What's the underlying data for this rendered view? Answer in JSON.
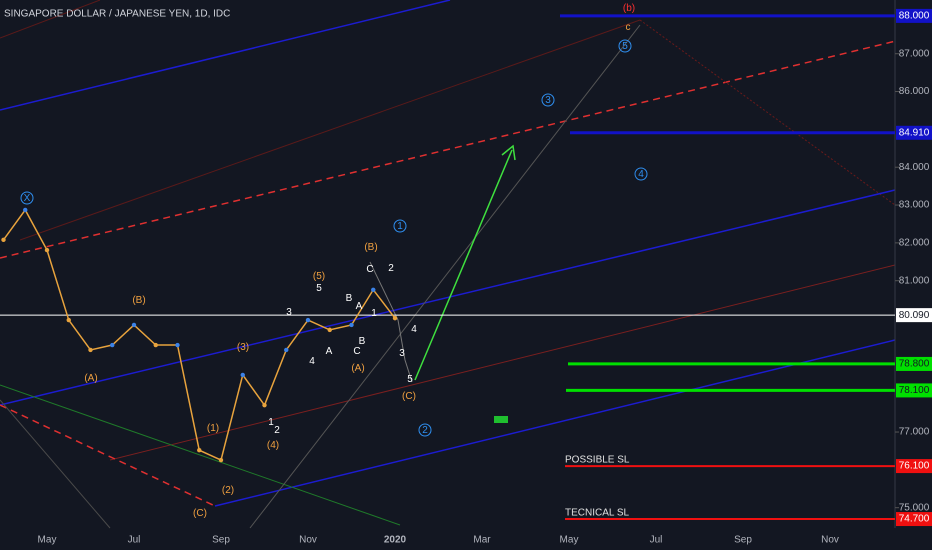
{
  "chart_data": {
    "type": "line",
    "title": "SINGAPORE DOLLAR / JAPANESE YEN, 1D, IDC",
    "categories": [
      null,
      null,
      "May",
      null,
      null,
      null,
      "Jul",
      null,
      null,
      null,
      "Sep",
      null,
      null,
      null,
      "Nov",
      null,
      null,
      null,
      "2020",
      null,
      null,
      null,
      "Mar",
      null,
      null,
      null,
      "May",
      null,
      null,
      null,
      "Jul",
      null,
      null,
      null,
      "Sep",
      null,
      null,
      null,
      "Nov",
      null,
      null
    ],
    "series": [
      {
        "color": "#e8a33d",
        "up_color": "#3b82e8",
        "values": [
          82.08,
          82.87,
          81.81,
          79.96,
          79.17,
          79.3,
          79.83,
          79.3,
          79.3,
          76.52,
          76.26,
          78.51,
          77.71,
          79.17,
          79.96,
          79.7,
          79.83,
          80.76,
          80.01,
          null,
          null,
          null,
          null,
          null,
          null,
          null,
          null,
          null,
          null,
          null,
          null,
          null,
          null,
          null,
          null,
          null,
          null,
          null,
          null,
          null,
          null
        ]
      }
    ],
    "ylim": [
      74.45,
      88.42
    ],
    "yticks": [
      {
        "value": 87,
        "label": "87.000"
      },
      {
        "value": 86,
        "label": "86.000"
      },
      {
        "value": 84,
        "label": "84.000"
      },
      {
        "value": 83,
        "label": "83.000"
      },
      {
        "value": 82,
        "label": "82.000"
      },
      {
        "value": 81,
        "label": "81.000"
      },
      {
        "value": 77,
        "label": "77.000"
      },
      {
        "value": 75,
        "label": "75.000"
      }
    ],
    "levels": [
      {
        "value": 88,
        "label": "88.000",
        "color": "#1212c8",
        "text_color": "#ffffff"
      },
      {
        "value": 84.91,
        "label": "84.910",
        "color": "#1212c8",
        "text_color": "#ffffff"
      },
      {
        "value": 80.09,
        "label": "80.090",
        "color": "#ffffff",
        "text_color": "#131722"
      },
      {
        "value": 78.8,
        "label": "78.800",
        "color": "#00e000",
        "text_color": "#131722"
      },
      {
        "value": 78.1,
        "label": "78.100",
        "color": "#00e000",
        "text_color": "#131722"
      },
      {
        "value": 76.1,
        "label": "76.100",
        "color": "#f01010",
        "text_color": "#ffffff",
        "note": "POSSIBLE SL"
      },
      {
        "value": 74.7,
        "label": "74.700",
        "color": "#f01010",
        "text_color": "#ffffff",
        "note": "TECNICAL SL"
      }
    ],
    "annotations": [
      "X",
      "(B)",
      "(A)",
      "(1)",
      "(2)",
      "(C)",
      "(3)",
      "(4)",
      "(5)",
      "(A)",
      "(B)",
      "(C)",
      "1",
      "2",
      "3",
      "4",
      "5",
      "A",
      "B",
      "C",
      "A",
      "B",
      "1",
      "C",
      "2",
      "3",
      "4",
      "5",
      "1",
      "2",
      "3",
      "4",
      "5",
      "(b)",
      "c"
    ]
  }
}
